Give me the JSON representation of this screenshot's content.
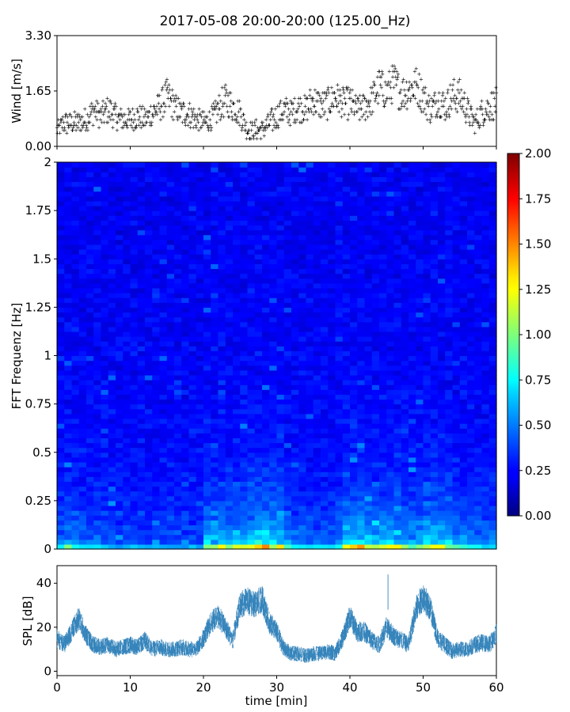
{
  "figure": {
    "title": "2017-05-08 20:00-20:00 (125.00_Hz)"
  },
  "chart_data": [
    {
      "type": "scatter",
      "name": "wind-panel",
      "ylabel": "Wind [m/s]",
      "xlim": [
        0,
        60
      ],
      "ylim": [
        0,
        3.3
      ],
      "yticks": [
        0.0,
        1.65,
        3.3
      ],
      "ytick_labels": [
        "0.00",
        "1.65",
        "3.30"
      ],
      "grid": false,
      "color": "#1f77b4",
      "series": [
        {
          "x": [
            0,
            1,
            2,
            3,
            4,
            5,
            6,
            7,
            8,
            9,
            10,
            11,
            12,
            13,
            14,
            15,
            16,
            17,
            18,
            19,
            20,
            21,
            22,
            23,
            24,
            25,
            26,
            27,
            28,
            29,
            30,
            31,
            32,
            33,
            34,
            35,
            36,
            37,
            38,
            39,
            40,
            41,
            42,
            43,
            44,
            45,
            46,
            47,
            48,
            49,
            50,
            51,
            52,
            53,
            54,
            55,
            56,
            57,
            58,
            59,
            60
          ],
          "y": [
            0.5,
            0.7,
            0.7,
            0.7,
            0.8,
            1.1,
            0.9,
            1.1,
            0.9,
            0.8,
            0.8,
            0.9,
            0.8,
            1.0,
            1.2,
            1.5,
            1.2,
            1.0,
            1.0,
            0.8,
            0.7,
            0.8,
            1.1,
            1.4,
            1.2,
            1.0,
            0.5,
            0.5,
            0.5,
            0.7,
            0.9,
            1.1,
            1.0,
            1.2,
            1.1,
            1.4,
            1.2,
            1.3,
            1.5,
            1.3,
            1.3,
            1.1,
            1.2,
            1.4,
            1.8,
            1.6,
            1.9,
            1.6,
            1.7,
            1.8,
            1.5,
            1.1,
            1.4,
            1.2,
            1.5,
            1.5,
            1.1,
            0.7,
            1.0,
            1.2,
            1.3
          ]
        }
      ]
    },
    {
      "type": "heatmap",
      "name": "fft-spectrogram",
      "ylabel": "FFT Frequenz [Hz]",
      "xlim": [
        0,
        60
      ],
      "ylim": [
        0,
        2
      ],
      "yticks": [
        0,
        0.25,
        0.5,
        0.75,
        1,
        1.25,
        1.5,
        1.75,
        2
      ],
      "ytick_labels": [
        "0",
        "0.25",
        "0.5",
        "0.75",
        "1",
        "1.25",
        "1.5",
        "1.75",
        "2"
      ],
      "colormap": "jet",
      "colorbar": {
        "range": [
          0.0,
          2.0
        ],
        "ticks": [
          "0.00",
          "0.25",
          "0.50",
          "0.75",
          "1.00",
          "1.25",
          "1.50",
          "1.75",
          "2.00"
        ]
      },
      "column_activity": [
        0.35,
        0.55,
        0.45,
        0.4,
        0.35,
        0.35,
        0.3,
        0.3,
        0.25,
        0.25,
        0.25,
        0.25,
        0.25,
        0.3,
        0.3,
        0.3,
        0.3,
        0.25,
        0.25,
        0.3,
        0.7,
        0.75,
        0.8,
        0.7,
        0.75,
        0.85,
        0.8,
        0.9,
        0.95,
        0.9,
        0.85,
        0.6,
        0.45,
        0.4,
        0.4,
        0.35,
        0.35,
        0.4,
        0.55,
        0.8,
        0.9,
        0.9,
        0.85,
        0.75,
        0.75,
        0.8,
        0.8,
        0.6,
        0.55,
        0.65,
        0.85,
        0.8,
        0.8,
        0.75,
        0.55,
        0.55,
        0.5,
        0.5,
        0.45,
        0.45
      ]
    },
    {
      "type": "line",
      "name": "spl-panel",
      "ylabel": "SPL [dB]",
      "xlabel": "time [min]",
      "xlim": [
        0,
        60
      ],
      "ylim": [
        -2,
        48
      ],
      "xticks": [
        0,
        10,
        20,
        30,
        40,
        50,
        60
      ],
      "xtick_labels": [
        "0",
        "10",
        "20",
        "30",
        "40",
        "50",
        "60"
      ],
      "yticks": [
        0,
        20,
        40
      ],
      "ytick_labels": [
        "0",
        "20",
        "40"
      ],
      "color": "#1f77b4",
      "series": [
        {
          "x": [
            0,
            1,
            2,
            3,
            4,
            5,
            6,
            7,
            8,
            9,
            10,
            11,
            12,
            13,
            14,
            15,
            16,
            17,
            18,
            19,
            20,
            21,
            22,
            23,
            24,
            25,
            26,
            27,
            28,
            29,
            30,
            31,
            32,
            33,
            34,
            35,
            36,
            37,
            38,
            39,
            40,
            41,
            42,
            43,
            44,
            45,
            46,
            47,
            48,
            49,
            50,
            51,
            52,
            53,
            54,
            55,
            56,
            57,
            58,
            59,
            60
          ],
          "y": [
            15,
            12,
            18,
            24,
            16,
            12,
            11,
            12,
            10,
            11,
            12,
            11,
            14,
            10,
            11,
            10,
            10,
            11,
            10,
            10,
            15,
            22,
            25,
            20,
            14,
            30,
            32,
            30,
            33,
            22,
            18,
            10,
            8,
            8,
            7,
            8,
            8,
            9,
            8,
            15,
            25,
            18,
            18,
            14,
            12,
            20,
            16,
            14,
            12,
            28,
            34,
            28,
            15,
            12,
            9,
            10,
            10,
            12,
            13,
            12,
            17
          ]
        }
      ]
    }
  ]
}
